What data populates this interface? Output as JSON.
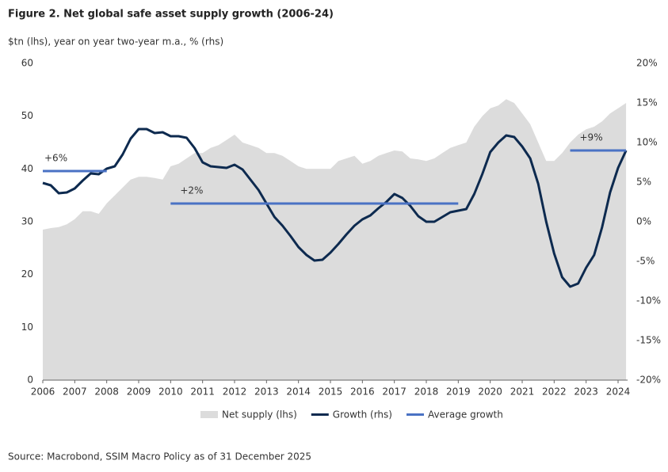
{
  "chart_data": {
    "type": "line",
    "title": "Figure 2. Net global safe asset supply growth (2006-24)",
    "subtitle": "$tn (lhs), year on year two-year m.a., % (rhs)",
    "source": "Source: Macrobond, SSIM Macro Policy as of 31 December 2025",
    "x": [
      2006,
      2006.25,
      2006.5,
      2006.75,
      2007,
      2007.25,
      2007.5,
      2007.75,
      2008,
      2008.25,
      2008.5,
      2008.75,
      2009,
      2009.25,
      2009.5,
      2009.75,
      2010,
      2010.25,
      2010.5,
      2010.75,
      2011,
      2011.25,
      2011.5,
      2011.75,
      2012,
      2012.25,
      2012.5,
      2012.75,
      2013,
      2013.25,
      2013.5,
      2013.75,
      2014,
      2014.25,
      2014.5,
      2014.75,
      2015,
      2015.25,
      2015.5,
      2015.75,
      2016,
      2016.25,
      2016.5,
      2016.75,
      2017,
      2017.25,
      2017.5,
      2017.75,
      2018,
      2018.25,
      2018.5,
      2018.75,
      2019,
      2019.25,
      2019.5,
      2019.75,
      2020,
      2020.25,
      2020.5,
      2020.75,
      2021,
      2021.25,
      2021.5,
      2021.75,
      2022,
      2022.25,
      2022.5,
      2022.75,
      2023,
      2023.25,
      2023.5,
      2023.75,
      2024,
      2024.25
    ],
    "series": [
      {
        "name": "Net supply (lhs)",
        "kind": "area",
        "color": "#dcdcdc",
        "axis": "y",
        "values": [
          28.5,
          28.8,
          29,
          29.5,
          30.5,
          32,
          32,
          31.5,
          33.5,
          35,
          36.5,
          38,
          38.5,
          38.5,
          38.3,
          38,
          40.5,
          41,
          42,
          43,
          43,
          44,
          44.5,
          45.5,
          46.5,
          45,
          44.5,
          44,
          43,
          43,
          42.5,
          41.5,
          40.5,
          40,
          40,
          40,
          40,
          41.5,
          42,
          42.5,
          41,
          41.5,
          42.5,
          43,
          43.5,
          43.3,
          42,
          41.8,
          41.5,
          42,
          43,
          44,
          44.5,
          45,
          48,
          50,
          51.5,
          52,
          53.2,
          52.5,
          50.5,
          48.5,
          45,
          41.5,
          41.5,
          43,
          45,
          46.5,
          47.5,
          48,
          49,
          50.5,
          51.5,
          52.5
        ]
      },
      {
        "name": "Growth (rhs)",
        "kind": "line",
        "color": "#0d2a4f",
        "axis": "y2",
        "values": [
          4.9,
          4.6,
          3.6,
          3.7,
          4.2,
          5.2,
          6.1,
          6.0,
          6.7,
          7.0,
          8.5,
          10.5,
          11.7,
          11.7,
          11.2,
          11.3,
          10.8,
          10.8,
          10.6,
          9.3,
          7.5,
          7.0,
          6.9,
          6.8,
          7.2,
          6.6,
          5.3,
          4.0,
          2.3,
          0.6,
          -0.5,
          -1.8,
          -3.2,
          -4.2,
          -4.9,
          -4.8,
          -3.9,
          -2.8,
          -1.6,
          -0.5,
          0.3,
          0.8,
          1.7,
          2.5,
          3.5,
          3.0,
          2.0,
          0.7,
          0,
          0,
          0.6,
          1.2,
          1.4,
          1.6,
          3.5,
          6.0,
          8.8,
          10.0,
          10.9,
          10.7,
          9.5,
          8.0,
          4.8,
          0,
          -4,
          -7,
          -8.2,
          -7.8,
          -5.8,
          -4.2,
          -0.7,
          3.7,
          6.8,
          9.0
        ]
      },
      {
        "name": "Average growth",
        "kind": "line",
        "color": "#4a72c4",
        "axis": "y2",
        "values": [
          6.4,
          6.4,
          6.4,
          6.4,
          6.4,
          6.4,
          6.4,
          6.4,
          6.4,
          null,
          null,
          null,
          null,
          null,
          null,
          null,
          2.3,
          2.3,
          2.3,
          2.3,
          2.3,
          2.3,
          2.3,
          2.3,
          2.3,
          2.3,
          2.3,
          2.3,
          2.3,
          2.3,
          2.3,
          2.3,
          2.3,
          2.3,
          2.3,
          2.3,
          2.3,
          2.3,
          2.3,
          2.3,
          2.3,
          2.3,
          2.3,
          2.3,
          2.3,
          2.3,
          2.3,
          2.3,
          2.3,
          2.3,
          2.3,
          2.3,
          2.3,
          null,
          null,
          null,
          null,
          null,
          null,
          null,
          null,
          null,
          null,
          null,
          null,
          null,
          9,
          9,
          9,
          9,
          9,
          9,
          9,
          9
        ]
      }
    ],
    "annotations": [
      {
        "text": "+6%",
        "x": 2006,
        "y": 6.4
      },
      {
        "text": "+2%",
        "x": 2010,
        "y": 2.3
      },
      {
        "text": "+9%",
        "x": 2022.5,
        "y": 9
      }
    ],
    "xlim": [
      2006,
      2024.3
    ],
    "xticks": [
      2006,
      2007,
      2008,
      2009,
      2010,
      2011,
      2012,
      2013,
      2014,
      2015,
      2016,
      2017,
      2018,
      2019,
      2020,
      2021,
      2022,
      2023,
      2024
    ],
    "ylim": [
      0,
      60
    ],
    "yticks": [
      0,
      10,
      20,
      30,
      40,
      50,
      60
    ],
    "y2lim": [
      -20,
      20
    ],
    "y2ticks": [
      {
        "value": -20,
        "label": "-20%"
      },
      {
        "value": -15,
        "label": "-15%"
      },
      {
        "value": -10,
        "label": "-10%"
      },
      {
        "value": -5,
        "label": "-5%"
      },
      {
        "value": 0,
        "label": "0%"
      },
      {
        "value": 5,
        "label": "5%"
      },
      {
        "value": 10,
        "label": "10%"
      },
      {
        "value": 15,
        "label": "15%"
      },
      {
        "value": 20,
        "label": "20%"
      }
    ]
  }
}
